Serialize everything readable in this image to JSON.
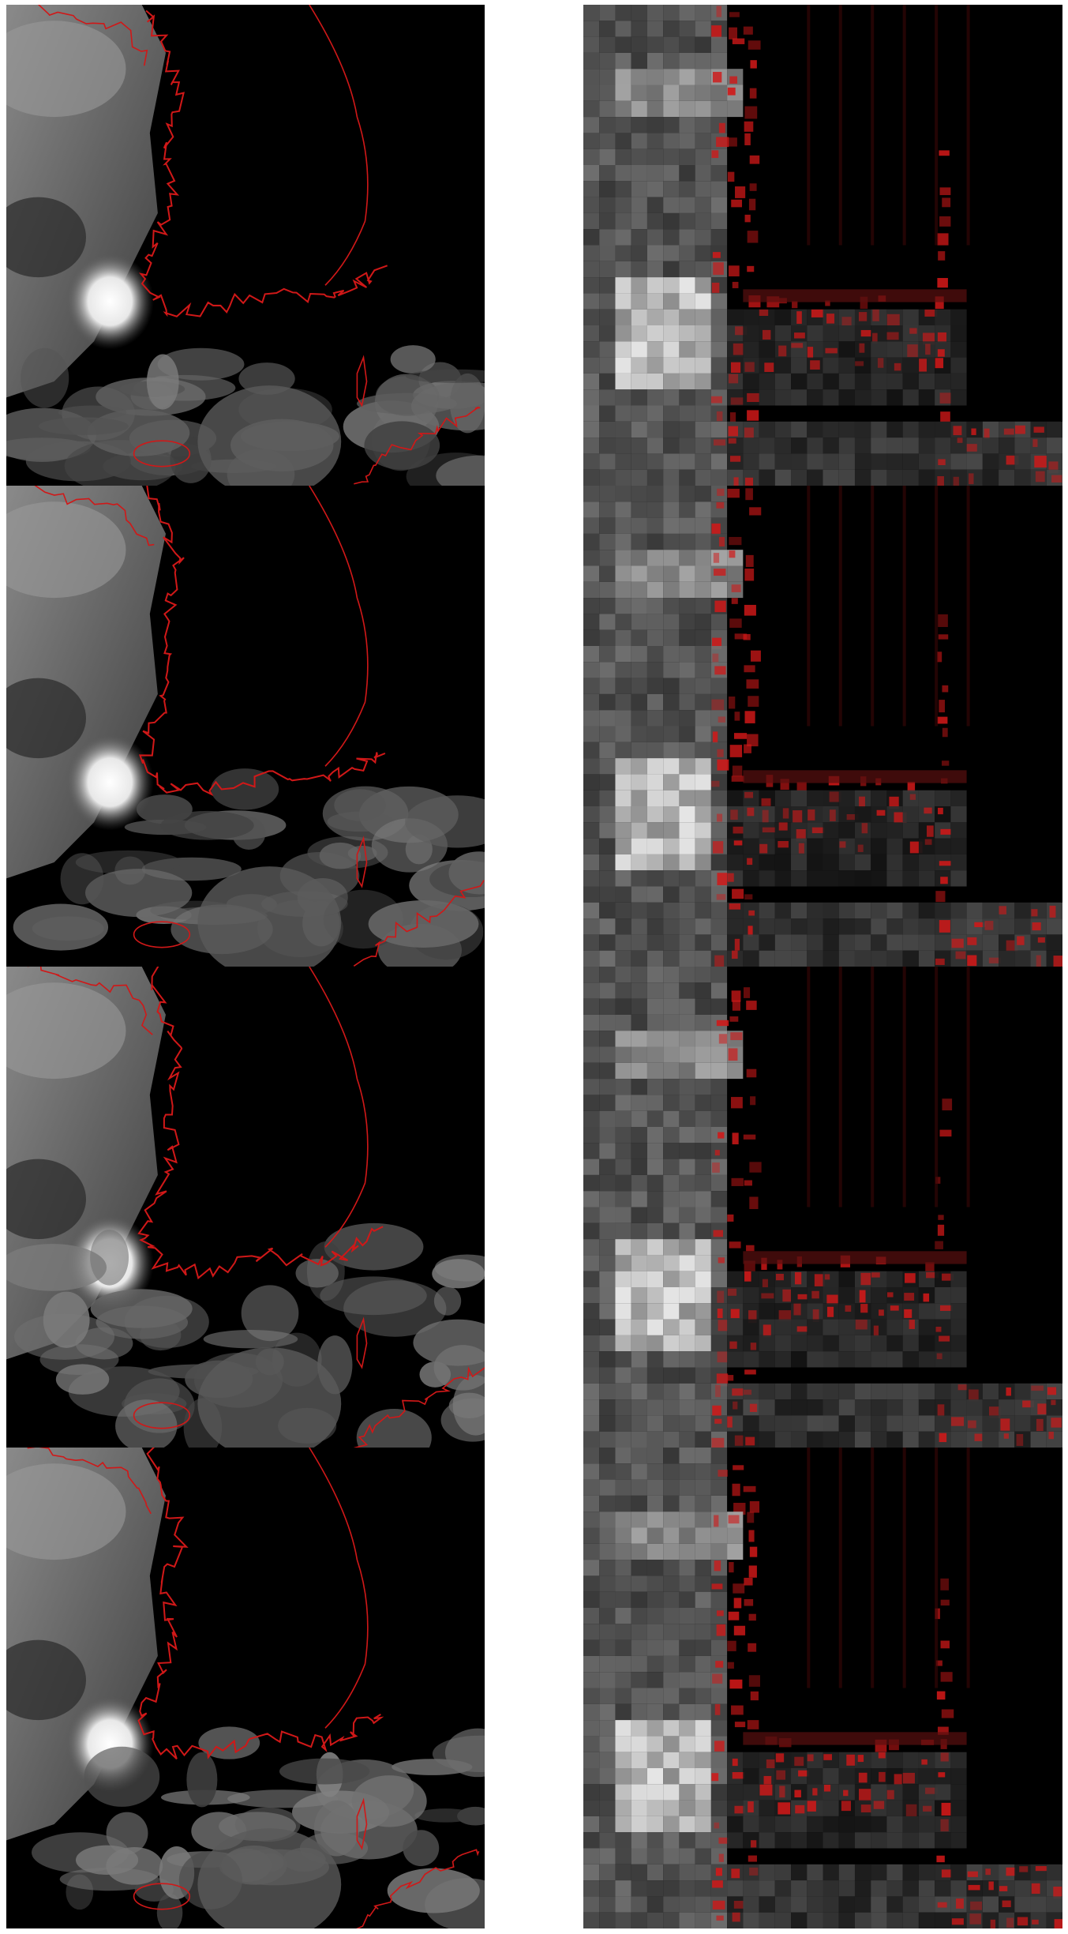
{
  "figure": {
    "rows": 4,
    "columns": [
      "satellite-imagery",
      "model-reconstruction"
    ],
    "panels": [
      {
        "row": 1,
        "column": "left",
        "type": "satellite-imagery-with-coastline-overlay"
      },
      {
        "row": 1,
        "column": "right",
        "type": "blocky-reconstruction-with-coastline-overlay"
      },
      {
        "row": 2,
        "column": "left",
        "type": "satellite-imagery-with-coastline-overlay"
      },
      {
        "row": 2,
        "column": "right",
        "type": "blocky-reconstruction-with-coastline-overlay"
      },
      {
        "row": 3,
        "column": "left",
        "type": "satellite-imagery-with-coastline-overlay"
      },
      {
        "row": 3,
        "column": "right",
        "type": "blocky-reconstruction-with-coastline-overlay"
      },
      {
        "row": 4,
        "column": "left",
        "type": "satellite-imagery-with-coastline-overlay"
      },
      {
        "row": 4,
        "column": "right",
        "type": "blocky-reconstruction-with-coastline-overlay"
      }
    ],
    "colors": {
      "background": "#000000",
      "coastline": "#d01818",
      "page": "#ffffff"
    }
  }
}
